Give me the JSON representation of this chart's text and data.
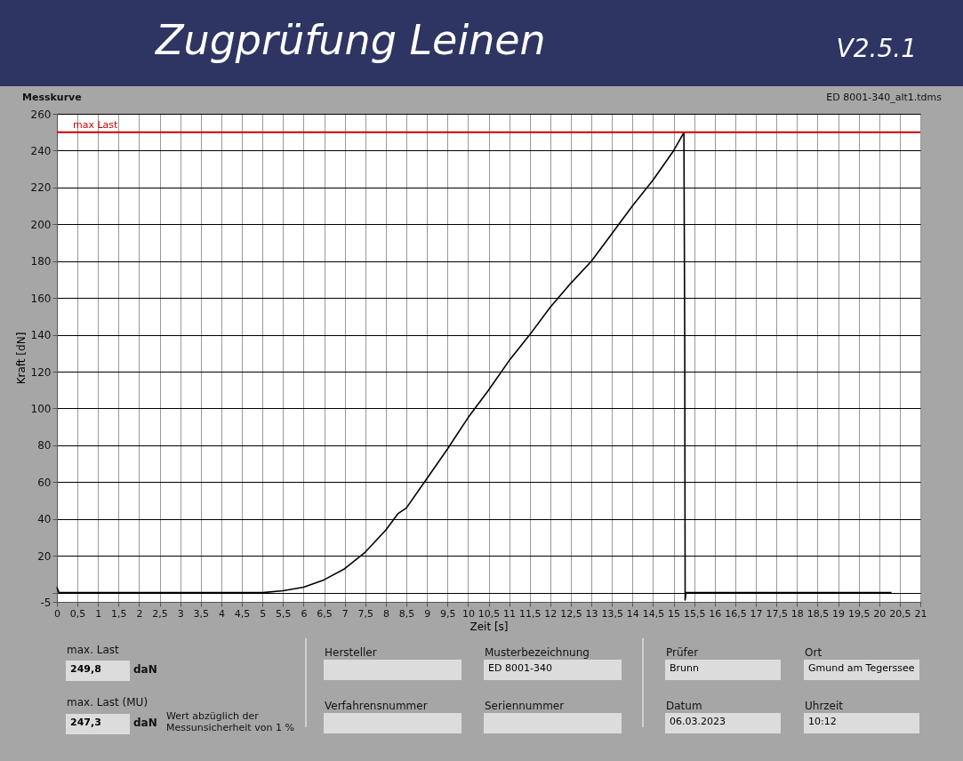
{
  "chart_data": {
    "type": "line",
    "title": "Zugprüfung Leinen",
    "subtitle": "V2.5.1",
    "xlabel": "Zeit [s]",
    "ylabel": "Kraft [dN]",
    "xlim": [
      0,
      21
    ],
    "ylim": [
      -5,
      260
    ],
    "xticks": [
      0,
      {
        "value": 0.5,
        "label": "0,5"
      },
      1,
      {
        "value": 1.5,
        "label": "1,5"
      },
      2,
      {
        "value": 2.5,
        "label": "2,5"
      },
      3,
      {
        "value": 3.5,
        "label": "3,5"
      },
      4,
      {
        "value": 4.5,
        "label": "4,5"
      },
      5,
      {
        "value": 5.5,
        "label": "5,5"
      },
      6,
      {
        "value": 6.5,
        "label": "6,5"
      },
      7,
      {
        "value": 7.5,
        "label": "7,5"
      },
      8,
      {
        "value": 8.5,
        "label": "8,5"
      },
      9,
      {
        "value": 9.5,
        "label": "9,5"
      },
      10,
      {
        "value": 10.5,
        "label": "10,5"
      },
      11,
      {
        "value": 11.5,
        "label": "11,5"
      },
      12,
      {
        "value": 12.5,
        "label": "12,5"
      },
      13,
      {
        "value": 13.5,
        "label": "13,5"
      },
      14,
      {
        "value": 14.5,
        "label": "14,5"
      },
      15,
      {
        "value": 15.5,
        "label": "15,5"
      },
      16,
      {
        "value": 16.5,
        "label": "16,5"
      },
      17,
      {
        "value": 17.5,
        "label": "17,5"
      },
      18,
      {
        "value": 18.5,
        "label": "18,5"
      },
      19,
      {
        "value": 19.5,
        "label": "19,5"
      },
      20,
      {
        "value": 20.5,
        "label": "20,5"
      },
      21
    ],
    "yticks": [
      -5,
      {
        "value": 0,
        "label": null
      },
      20,
      40,
      60,
      80,
      100,
      120,
      140,
      160,
      180,
      200,
      220,
      240,
      260
    ],
    "grid": true,
    "marker": "none",
    "line_style": "solid",
    "series": [
      {
        "color": "#000000",
        "x": [
          0,
          0.05,
          1,
          2,
          3,
          4,
          4.5,
          5,
          5.5,
          6,
          6.5,
          7,
          7.5,
          8,
          8.3,
          8.5,
          9,
          9.5,
          10,
          10.5,
          11,
          11.5,
          12,
          12.5,
          13,
          13.5,
          14,
          14.5,
          15,
          15.25,
          15.27,
          15.28,
          15.3,
          15.35,
          16,
          17,
          18,
          19,
          20,
          20.3
        ],
        "values": [
          3,
          0,
          0,
          0,
          0,
          0,
          0,
          0,
          1,
          3,
          7,
          13,
          22,
          34,
          43,
          46,
          62,
          78,
          95,
          110,
          126,
          140,
          155,
          168,
          180,
          195,
          210,
          224,
          240,
          249.8,
          135,
          -4,
          0,
          0,
          0,
          0,
          0,
          0,
          0,
          0
        ]
      }
    ],
    "ref_lines": [
      {
        "axis": "y",
        "value": 250,
        "label": "max Last",
        "color": "#cc0000"
      }
    ],
    "annotations": [
      "Messkurve",
      "ED 8001-340_alt1.tdms",
      "max. Last",
      "249,8",
      "daN",
      "max. Last (MU)",
      "247,3",
      "daN",
      "Wert abzüglich der Messunsicherheit von 1 %",
      "Hersteller",
      "Musterbezeichnung",
      "ED 8001-340",
      "Verfahrensnummer",
      "Seriennummer",
      "Prüfer",
      "Brunn",
      "Ort",
      "Gmund am Tegerssee",
      "Datum",
      "06.03.2023",
      "Uhrzeit",
      "10:12"
    ]
  }
}
